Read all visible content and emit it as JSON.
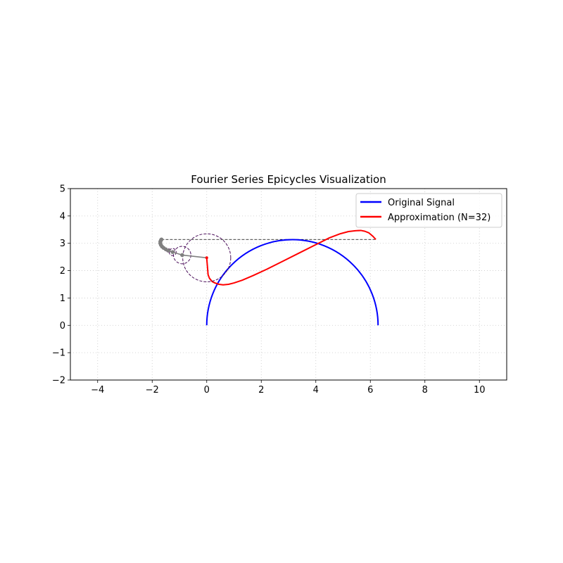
{
  "chart_data": {
    "type": "line",
    "title": "Fourier Series Epicycles Visualization",
    "xlabel": "",
    "ylabel": "",
    "xlim": [
      -5,
      11
    ],
    "ylim": [
      -2,
      5
    ],
    "x_ticks": [
      -4,
      -2,
      0,
      2,
      4,
      6,
      8,
      10
    ],
    "y_ticks": [
      -2,
      -1,
      0,
      1,
      2,
      3,
      4,
      5
    ],
    "x_tick_labels": [
      "−4",
      "−2",
      "0",
      "2",
      "4",
      "6",
      "8",
      "10"
    ],
    "y_tick_labels": [
      "−2",
      "−1",
      "0",
      "1",
      "2",
      "3",
      "4",
      "5"
    ],
    "grid": true,
    "aspect": "equal",
    "legend_position": "upper right",
    "series": [
      {
        "name": "Original Signal",
        "color": "#0000ff",
        "kind": "semicircle",
        "x": [
          0,
          0.02,
          0.08,
          0.17,
          0.3,
          0.46,
          0.65,
          0.87,
          1.12,
          1.39,
          1.68,
          1.98,
          2.3,
          2.63,
          2.97,
          3.14,
          3.31,
          3.65,
          3.98,
          4.3,
          4.6,
          4.89,
          5.16,
          5.41,
          5.63,
          5.82,
          5.98,
          6.11,
          6.2,
          6.26,
          6.28
        ],
        "y": [
          0,
          0.33,
          0.66,
          0.97,
          1.28,
          1.56,
          1.83,
          2.08,
          2.3,
          2.5,
          2.67,
          2.81,
          2.92,
          3.0,
          3.06,
          3.14,
          3.06,
          3.0,
          2.92,
          2.81,
          2.67,
          2.5,
          2.3,
          2.08,
          1.83,
          1.56,
          1.28,
          0.97,
          0.66,
          0.33,
          0
        ]
      },
      {
        "name": "Approximation (N=32)",
        "color": "#ff0000",
        "kind": "trace",
        "x": [
          0,
          0.03,
          0.05,
          0.1,
          0.2,
          0.3,
          0.45,
          0.6,
          0.8,
          1.0,
          1.3,
          1.7,
          2.2,
          2.8,
          3.4,
          4.0,
          4.5,
          4.9,
          5.2,
          5.45,
          5.65,
          5.8,
          5.95,
          6.1,
          6.2
        ],
        "y": [
          2.45,
          2.1,
          1.85,
          1.72,
          1.6,
          1.55,
          1.5,
          1.48,
          1.5,
          1.55,
          1.65,
          1.82,
          2.05,
          2.35,
          2.65,
          2.95,
          3.2,
          3.35,
          3.43,
          3.46,
          3.47,
          3.44,
          3.38,
          3.25,
          3.14
        ]
      }
    ],
    "epicycles": {
      "circle_color": "#4b0f5b",
      "arm_color": "#808080",
      "circles": [
        {
          "cx": 0.0,
          "cy": 2.47,
          "r": 0.88
        },
        {
          "cx": -0.9,
          "cy": 2.57,
          "r": 0.32
        },
        {
          "cx": -1.25,
          "cy": 2.68,
          "r": 0.13
        },
        {
          "cx": -1.4,
          "cy": 2.73,
          "r": 0.07
        },
        {
          "cx": -1.5,
          "cy": 2.78,
          "r": 0.05
        }
      ],
      "chain": [
        [
          0.0,
          2.47
        ],
        [
          -0.9,
          2.57
        ],
        [
          -1.25,
          2.68
        ],
        [
          -1.4,
          2.73
        ],
        [
          -1.5,
          2.78
        ],
        [
          -1.58,
          2.83
        ],
        [
          -1.64,
          2.88
        ],
        [
          -1.68,
          2.94
        ],
        [
          -1.7,
          3.0
        ],
        [
          -1.7,
          3.06
        ],
        [
          -1.68,
          3.11
        ],
        [
          -1.66,
          3.14
        ]
      ],
      "guide_line": {
        "x": [
          -1.66,
          6.2
        ],
        "y": [
          3.14,
          3.14
        ]
      }
    }
  }
}
